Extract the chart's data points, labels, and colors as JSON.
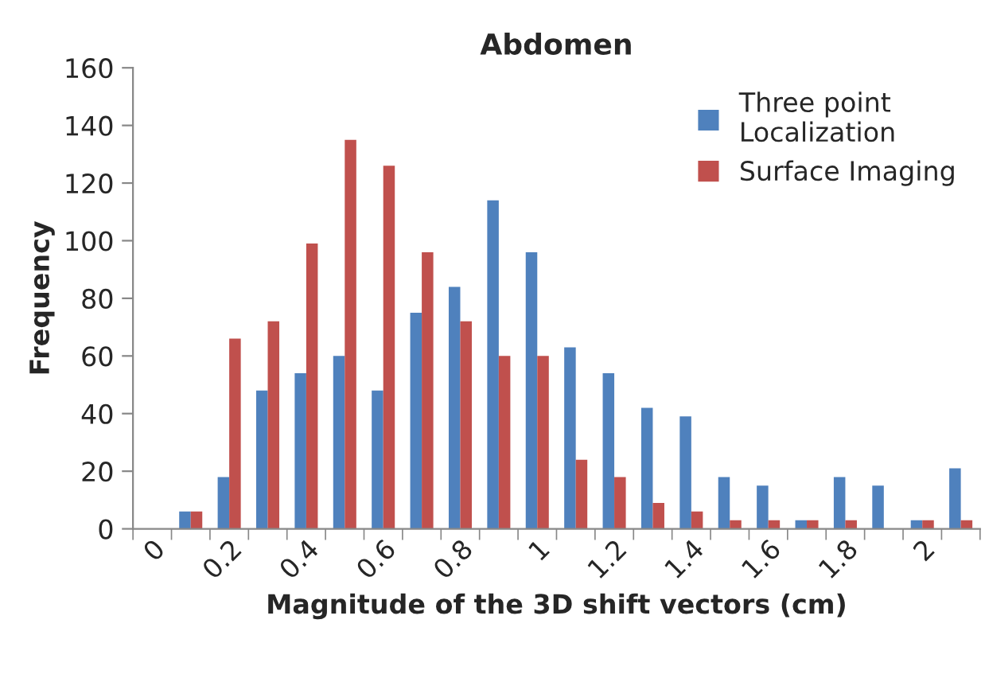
{
  "chart_data": {
    "type": "bar",
    "title": "Abdomen",
    "xlabel": "Magnitude of the 3D shift vectors (cm)",
    "ylabel": "Frequency",
    "categories": [
      "0",
      null,
      "0.2",
      null,
      "0.4",
      null,
      "0.6",
      null,
      "0.8",
      null,
      "1",
      null,
      "1.2",
      null,
      "1.4",
      null,
      "1.6",
      null,
      "1.8",
      null,
      "2",
      null
    ],
    "series": [
      {
        "name": "Three point\nLocalization",
        "color": "#4f81bd",
        "values": [
          0,
          6,
          18,
          48,
          54,
          60,
          48,
          75,
          84,
          114,
          96,
          63,
          54,
          42,
          39,
          18,
          15,
          3,
          18,
          15,
          3,
          21
        ]
      },
      {
        "name": "Surface Imaging",
        "color": "#c0504d",
        "values": [
          0,
          6,
          66,
          72,
          99,
          135,
          126,
          96,
          72,
          60,
          60,
          24,
          18,
          9,
          6,
          3,
          3,
          3,
          3,
          0,
          3,
          3
        ]
      }
    ],
    "ylim": [
      0,
      160
    ],
    "yticks": [
      0,
      20,
      40,
      60,
      80,
      100,
      120,
      140,
      160
    ],
    "grid": false,
    "legend": "top right"
  }
}
